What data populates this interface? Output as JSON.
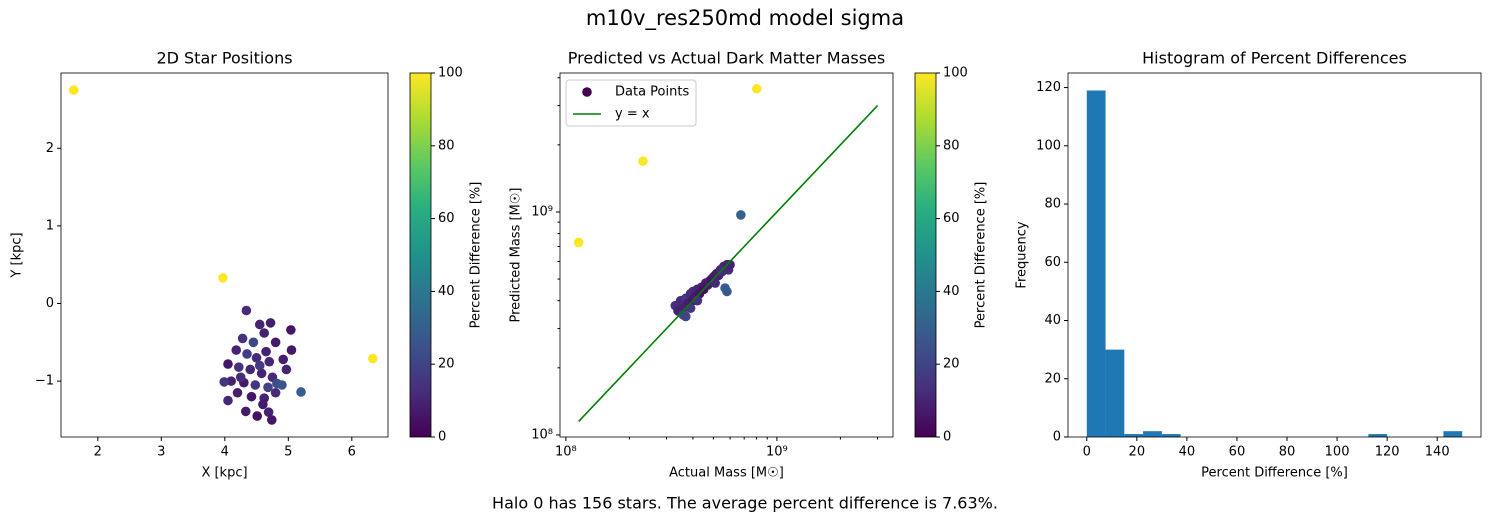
{
  "title": "m10v_res250md model sigma",
  "caption": "Halo 0 has 156 stars. The average percent difference is 7.63%.",
  "chart_data": [
    {
      "type": "scatter",
      "title": "2D Star Positions",
      "xlabel": "X [kpc]",
      "ylabel": "Y [kpc]",
      "xlim": [
        1.42,
        6.57
      ],
      "xticks": [
        2,
        3,
        4,
        5,
        6
      ],
      "ylim": [
        -1.72,
        2.97
      ],
      "yticks": [
        {
          "value": -1,
          "label": "−1"
        },
        0,
        1,
        2
      ],
      "colormap": "viridis",
      "colorbar": {
        "label": "Percent Difference [%]",
        "lim": [
          0,
          100
        ],
        "ticks": [
          0,
          20,
          40,
          60,
          80,
          100
        ]
      },
      "series": [
        {
          "x": [
            1.62,
            3.97,
            6.33,
            5.2,
            4.34,
            4.55,
            4.72,
            4.28,
            4.45,
            4.62,
            4.8,
            5.04,
            5.05,
            4.18,
            4.35,
            4.5,
            4.65,
            4.92,
            4.97,
            4.05,
            4.22,
            4.4,
            4.58,
            4.75,
            4.1,
            3.99,
            4.3,
            4.48,
            4.68,
            4.82,
            4.9,
            4.2,
            4.42,
            4.62,
            4.8,
            4.33,
            4.51,
            4.69,
            4.74,
            4.05,
            4.6,
            4.25,
            4.55,
            4.7
          ],
          "values": [
            2.75,
            0.33,
            -0.71,
            -1.14,
            -0.09,
            -0.27,
            -0.25,
            -0.45,
            -0.5,
            -0.38,
            -0.5,
            -0.34,
            -0.6,
            -0.6,
            -0.65,
            -0.7,
            -0.62,
            -0.72,
            -0.85,
            -0.78,
            -0.82,
            -0.85,
            -0.9,
            -0.95,
            -1.0,
            -1.01,
            -1.02,
            -1.05,
            -1.08,
            -1.03,
            -1.05,
            -1.15,
            -1.2,
            -1.22,
            -1.15,
            -1.39,
            -1.45,
            -1.4,
            -1.5,
            -1.25,
            -1.3,
            -0.95,
            -0.8,
            -0.75
          ],
          "color_values": [
            100,
            100,
            100,
            30,
            12,
            10,
            8,
            15,
            22,
            9,
            7,
            6,
            7,
            10,
            18,
            12,
            9,
            8,
            10,
            6,
            14,
            11,
            10,
            12,
            9,
            15,
            7,
            16,
            20,
            24,
            26,
            8,
            6,
            10,
            12,
            7,
            5,
            9,
            6,
            11,
            7,
            13,
            17,
            11
          ]
        }
      ]
    },
    {
      "type": "scatter",
      "title": "Predicted vs Actual Dark Matter Masses",
      "xlabel": "Actual Mass [M☉]",
      "ylabel": "Predicted Mass [M☉]",
      "xscale": "log",
      "yscale": "log",
      "xlim": [
        93800000,
        3550000000
      ],
      "xticks": [
        {
          "value": 100000000,
          "label": "10⁸"
        },
        {
          "value": 1000000000,
          "label": "10⁹"
        }
      ],
      "xminorticks": [
        200000000,
        300000000,
        400000000,
        500000000,
        600000000,
        700000000,
        800000000,
        900000000,
        2000000000,
        3000000000
      ],
      "ylim": [
        97900000,
        4200000000
      ],
      "yticks": [
        {
          "value": 100000000,
          "label": "10⁸"
        },
        {
          "value": 1000000000,
          "label": "10⁹"
        }
      ],
      "yminorticks": [
        200000000,
        300000000,
        400000000,
        500000000,
        600000000,
        700000000,
        800000000,
        900000000,
        2000000000,
        3000000000,
        4000000000
      ],
      "legend": "upper left",
      "colormap": "viridis",
      "colorbar": {
        "label": "Percent Difference [%]",
        "lim": [
          0,
          100
        ],
        "ticks": [
          0,
          20,
          40,
          60,
          80,
          100
        ]
      },
      "series": [
        {
          "name": "Data Points",
          "kind": "scatter",
          "color": "#440154",
          "x": [
            115000000,
            232000000,
            803000000,
            675000000,
            568000000,
            330000000,
            340000000,
            350000000,
            360000000,
            360000000,
            370000000,
            380000000,
            390000000,
            400000000,
            400000000,
            410000000,
            420000000,
            430000000,
            440000000,
            450000000,
            460000000,
            470000000,
            480000000,
            490000000,
            500000000,
            510000000,
            520000000,
            530000000,
            540000000,
            550000000,
            560000000,
            570000000,
            580000000,
            590000000,
            600000000,
            580000000,
            370000000,
            420000000,
            390000000,
            510000000
          ],
          "values": [
            730000000,
            1690000000,
            3570000000,
            970000000,
            456000000,
            380000000,
            360000000,
            400000000,
            370000000,
            345000000,
            410000000,
            390000000,
            430000000,
            400000000,
            440000000,
            420000000,
            450000000,
            430000000,
            460000000,
            450000000,
            480000000,
            470000000,
            490000000,
            500000000,
            510000000,
            520000000,
            530000000,
            520000000,
            550000000,
            540000000,
            570000000,
            560000000,
            580000000,
            550000000,
            580000000,
            440000000,
            340000000,
            400000000,
            370000000,
            480000000
          ],
          "color_values": [
            100,
            100,
            100,
            30,
            30,
            14,
            10,
            12,
            9,
            22,
            15,
            8,
            11,
            6,
            13,
            7,
            10,
            5,
            9,
            4,
            8,
            6,
            7,
            5,
            6,
            8,
            7,
            9,
            10,
            12,
            11,
            13,
            9,
            12,
            10,
            28,
            20,
            14,
            16,
            11
          ]
        },
        {
          "name": "y = x",
          "kind": "line",
          "color": "#008000",
          "x": [
            115000000,
            3000000000
          ],
          "values": [
            115000000,
            3000000000
          ]
        }
      ]
    },
    {
      "type": "histogram",
      "title": "Histogram of Percent Differences",
      "xlabel": "Percent Difference [%]",
      "ylabel": "Frequency",
      "xlim": [
        -7.5,
        157.5
      ],
      "xticks": [
        0,
        20,
        40,
        60,
        80,
        100,
        120,
        140
      ],
      "ylim": [
        0,
        125
      ],
      "yticks": [
        0,
        20,
        40,
        60,
        80,
        100,
        120
      ],
      "color": "#1f77b4",
      "bins": [
        0,
        7.5,
        15,
        22.5,
        30,
        37.5,
        45,
        52.5,
        60,
        67.5,
        75,
        82.5,
        90,
        97.5,
        105,
        112.5,
        120,
        127.5,
        135,
        142.5,
        150
      ],
      "values": [
        119,
        30,
        1,
        2,
        1,
        0,
        0,
        0,
        0,
        0,
        0,
        0,
        0,
        0,
        0,
        1,
        0,
        0,
        0,
        2
      ]
    }
  ]
}
